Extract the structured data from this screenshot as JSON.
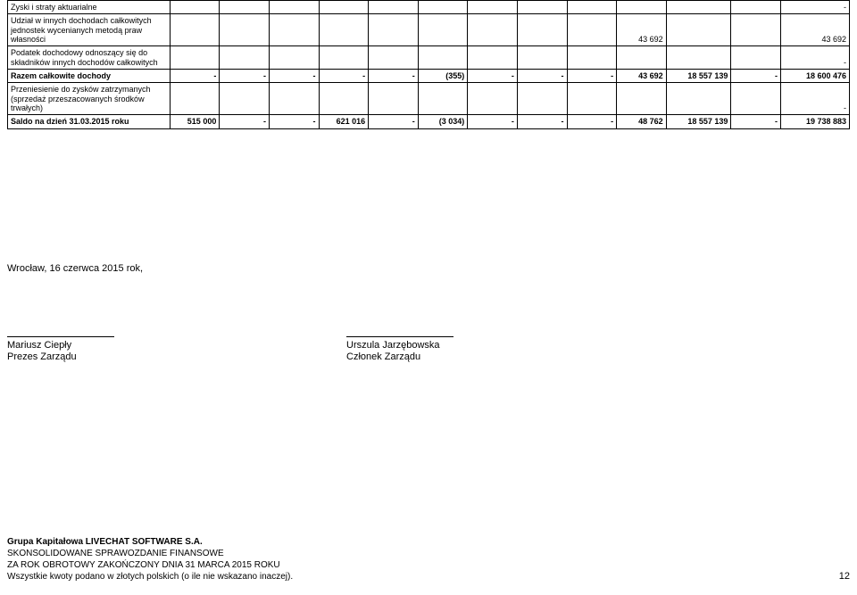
{
  "colors": {
    "border": "#000000",
    "text": "#000000",
    "bg": "#ffffff"
  },
  "table": {
    "rows": [
      {
        "label": "Zyski i straty aktuarialne",
        "bold": false,
        "cells": [
          "",
          "",
          "",
          "",
          "",
          "",
          "",
          "",
          "",
          "",
          "",
          "",
          "-"
        ]
      },
      {
        "label": "Udział w innych dochodach całkowitych jednostek wycenianych metodą praw własności",
        "bold": false,
        "cells": [
          "",
          "",
          "",
          "",
          "",
          "",
          "",
          "",
          "",
          "43 692",
          "",
          "",
          "43 692"
        ]
      },
      {
        "label": "Podatek dochodowy odnoszący się do składników innych dochodów całkowitych",
        "bold": false,
        "cells": [
          "",
          "",
          "",
          "",
          "",
          "",
          "",
          "",
          "",
          "",
          "",
          "",
          "-"
        ]
      },
      {
        "label": "Razem całkowite dochody",
        "bold": true,
        "cells": [
          "-",
          "-",
          "-",
          "-",
          "-",
          "(355)",
          "-",
          "-",
          "-",
          "43 692",
          "18 557 139",
          "-",
          "18 600 476"
        ]
      },
      {
        "label": "Przeniesienie do zysków zatrzymanych (sprzedaż przeszacowanych środków trwałych)",
        "bold": false,
        "cells": [
          "",
          "",
          "",
          "",
          "",
          "",
          "",
          "",
          "",
          "",
          "",
          "",
          "-"
        ]
      },
      {
        "label": "Saldo na dzień 31.03.2015 roku",
        "bold": true,
        "cells": [
          "515 000",
          "-",
          "-",
          "621 016",
          "-",
          "(3 034)",
          "-",
          "-",
          "-",
          "48 762",
          "18 557 139",
          "-",
          "19 738 883"
        ]
      }
    ]
  },
  "caption": "Wrocław, 16 czerwca 2015 rok,",
  "signatures": [
    {
      "name": "Mariusz Ciepły",
      "role": "Prezes Zarządu"
    },
    {
      "name": "Urszula Jarzębowska",
      "role": "Członek Zarządu"
    }
  ],
  "footer": {
    "line1": "Grupa Kapitałowa LIVECHAT SOFTWARE S.A.",
    "line2": "SKONSOLIDOWANE SPRAWOZDANIE FINANSOWE",
    "line3": "ZA ROK OBROTOWY ZAKOŃCZONY DNIA 31 MARCA 2015 ROKU",
    "line4": "Wszystkie kwoty podano w złotych polskich (o ile nie wskazano inaczej).",
    "page": "12"
  }
}
